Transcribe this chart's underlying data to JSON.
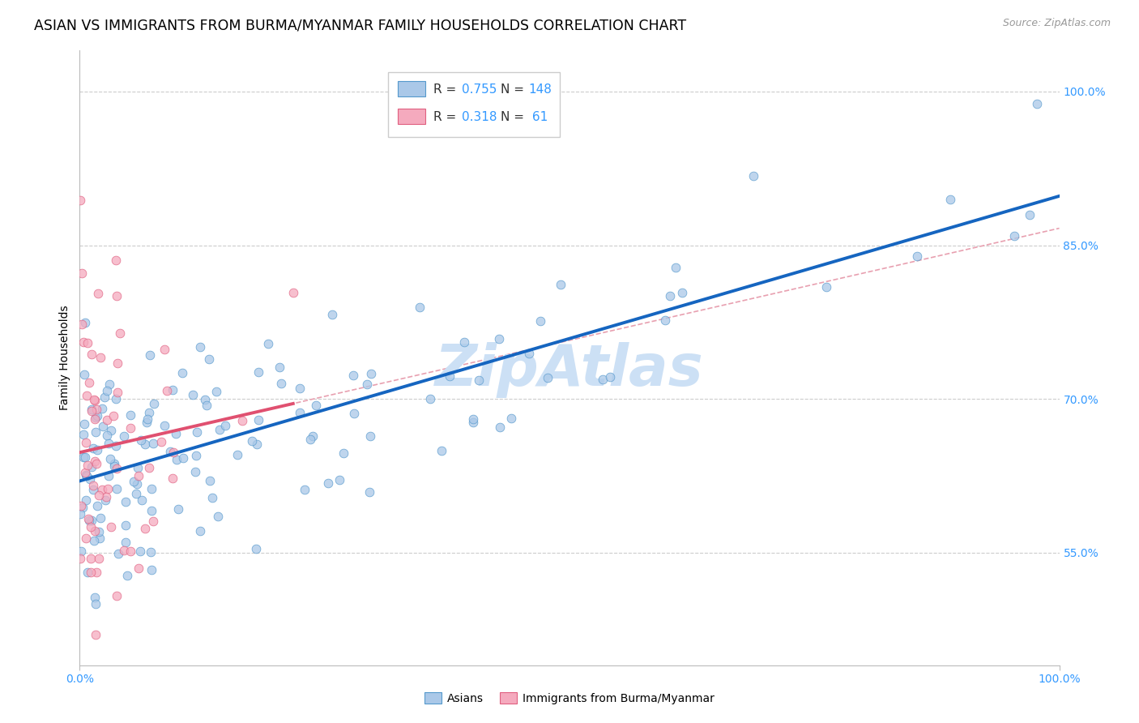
{
  "title": "ASIAN VS IMMIGRANTS FROM BURMA/MYANMAR FAMILY HOUSEHOLDS CORRELATION CHART",
  "source": "Source: ZipAtlas.com",
  "ylabel": "Family Households",
  "xlim": [
    0,
    1.0
  ],
  "ylim": [
    0.44,
    1.04
  ],
  "yticks": [
    0.55,
    0.7,
    0.85,
    1.0
  ],
  "ytick_labels": [
    "55.0%",
    "70.0%",
    "85.0%",
    "100.0%"
  ],
  "blue_R": 0.755,
  "blue_N": 148,
  "pink_R": 0.318,
  "pink_N": 61,
  "blue_color": "#aac8e8",
  "pink_color": "#f5aabe",
  "blue_edge_color": "#5599cc",
  "pink_edge_color": "#e06080",
  "blue_line_color": "#1565c0",
  "pink_line_color": "#e05070",
  "dashed_line_color": "#e8a0b0",
  "tick_color": "#3399ff",
  "watermark_color": "#cce0f5",
  "title_fontsize": 12.5,
  "axis_label_fontsize": 10,
  "tick_fontsize": 10,
  "legend_fontsize": 11,
  "background_color": "#ffffff",
  "grid_color": "#cccccc",
  "blue_seed": 42,
  "pink_seed": 7,
  "marker_size": 60
}
